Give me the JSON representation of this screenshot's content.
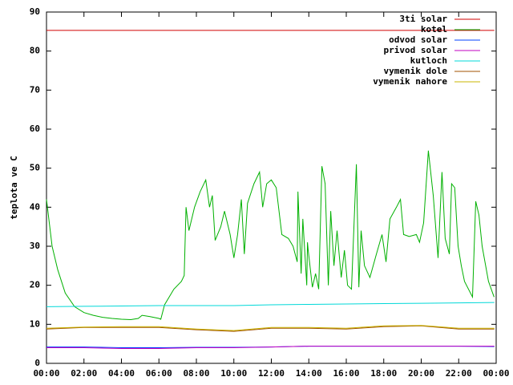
{
  "chart_data": {
    "type": "line",
    "y_label": "teplota ve C",
    "xlim": [
      0,
      24
    ],
    "ylim": [
      0,
      90
    ],
    "xticks": [
      {
        "value": 0,
        "label": "00:00"
      },
      {
        "value": 2,
        "label": "02:00"
      },
      {
        "value": 4,
        "label": "04:00"
      },
      {
        "value": 6,
        "label": "06:00"
      },
      {
        "value": 8,
        "label": "08:00"
      },
      {
        "value": 10,
        "label": "10:00"
      },
      {
        "value": 12,
        "label": "12:00"
      },
      {
        "value": 14,
        "label": "14:00"
      },
      {
        "value": 16,
        "label": "16:00"
      },
      {
        "value": 18,
        "label": "18:00"
      },
      {
        "value": 20,
        "label": "20:00"
      },
      {
        "value": 22,
        "label": "22:00"
      },
      {
        "value": 24,
        "label": "00:00"
      }
    ],
    "yticks": [
      0,
      10,
      20,
      30,
      40,
      50,
      60,
      70,
      80,
      90
    ],
    "legend": "top-right",
    "series": [
      {
        "name": "3ti solar",
        "color": "#d00000",
        "x": [
          0,
          23.9
        ],
        "values": [
          85.3,
          85.3
        ]
      },
      {
        "name": "kotel",
        "color": "#00b000",
        "x": [
          0,
          0.3,
          0.6,
          1.0,
          1.5,
          2.0,
          2.5,
          3.0,
          3.5,
          4.0,
          4.5,
          4.9,
          5.1,
          5.5,
          6.0,
          6.1,
          6.3,
          6.8,
          7.2,
          7.35,
          7.45,
          7.6,
          7.9,
          8.2,
          8.5,
          8.7,
          8.85,
          9.0,
          9.3,
          9.5,
          9.8,
          10.0,
          10.2,
          10.4,
          10.56,
          10.73,
          11.07,
          11.37,
          11.54,
          11.75,
          12.0,
          12.26,
          12.56,
          12.91,
          13.16,
          13.38,
          13.42,
          13.59,
          13.68,
          13.89,
          13.93,
          13.97,
          14.19,
          14.36,
          14.53,
          14.7,
          14.87,
          15.04,
          15.17,
          15.34,
          15.51,
          15.73,
          15.9,
          16.07,
          16.28,
          16.54,
          16.67,
          16.79,
          16.97,
          17.26,
          17.61,
          17.91,
          18.12,
          18.33,
          18.68,
          18.89,
          19.06,
          19.36,
          19.74,
          19.91,
          20.13,
          20.38,
          20.64,
          20.9,
          21.11,
          21.28,
          21.5,
          21.62,
          21.79,
          21.97,
          22.14,
          22.31,
          22.74,
          22.91,
          23.08,
          23.25,
          23.59,
          23.89
        ],
        "values": [
          42,
          30,
          24,
          18,
          14.5,
          13,
          12.3,
          11.8,
          11.5,
          11.3,
          11.2,
          11.5,
          12.3,
          12,
          11.5,
          11.3,
          15,
          19,
          21,
          22.5,
          40,
          34,
          40,
          44,
          47,
          40,
          43,
          31.5,
          35,
          39,
          33,
          27,
          33,
          42,
          28,
          41,
          46,
          49,
          40,
          46,
          47,
          45,
          33,
          32,
          30,
          26,
          44,
          23,
          37,
          20,
          31,
          29,
          19.5,
          23,
          19,
          50.5,
          46,
          20,
          39,
          25,
          34,
          22,
          29,
          20,
          19,
          51,
          19.5,
          34,
          25,
          22,
          28,
          33,
          26,
          37,
          40,
          42,
          33,
          32.5,
          33,
          31,
          36,
          54.5,
          43,
          27,
          49,
          32,
          28,
          46,
          45,
          30,
          25,
          21,
          17,
          41.5,
          38,
          30,
          21,
          17
        ]
      },
      {
        "name": "odvod solar",
        "color": "#0040ff",
        "x": [
          0,
          2,
          4,
          6,
          8,
          10,
          12,
          14,
          16,
          18,
          20,
          22,
          23.9
        ],
        "values": [
          4.2,
          4.2,
          4.0,
          4.0,
          4.1,
          4.1,
          4.2,
          4.4,
          4.4,
          4.4,
          4.4,
          4.4,
          4.3
        ]
      },
      {
        "name": "privod solar",
        "color": "#c000c0",
        "x": [
          0,
          2,
          4,
          6,
          8,
          10,
          12,
          14,
          16,
          18,
          20,
          22,
          23.9
        ],
        "values": [
          4.0,
          4.0,
          3.8,
          3.8,
          4.0,
          4.0,
          4.2,
          4.4,
          4.4,
          4.4,
          4.4,
          4.4,
          4.4
        ]
      },
      {
        "name": "kutloch",
        "color": "#00d8d8",
        "x": [
          0,
          2,
          4,
          6,
          8,
          10,
          12,
          14,
          16,
          18,
          20,
          22,
          23.9
        ],
        "values": [
          14.5,
          14.6,
          14.7,
          14.8,
          14.8,
          14.8,
          15.0,
          15.1,
          15.2,
          15.3,
          15.4,
          15.5,
          15.6
        ]
      },
      {
        "name": "vymenik dole",
        "color": "#a05000",
        "x": [
          0,
          2,
          4,
          6,
          8,
          10,
          12,
          14,
          16,
          18,
          20,
          22,
          23.9
        ],
        "values": [
          8.8,
          9.2,
          9.2,
          9.2,
          8.6,
          8.2,
          9.0,
          9.0,
          8.8,
          9.4,
          9.6,
          8.8,
          8.8
        ]
      },
      {
        "name": "vymenik nahore",
        "color": "#c8b400",
        "x": [
          0,
          2,
          4,
          6,
          8,
          10,
          12,
          14,
          16,
          18,
          20,
          22,
          23.9
        ],
        "values": [
          9.0,
          9.3,
          9.4,
          9.4,
          8.8,
          8.4,
          9.2,
          9.2,
          9.0,
          9.6,
          9.7,
          9.0,
          9.0
        ]
      }
    ]
  }
}
